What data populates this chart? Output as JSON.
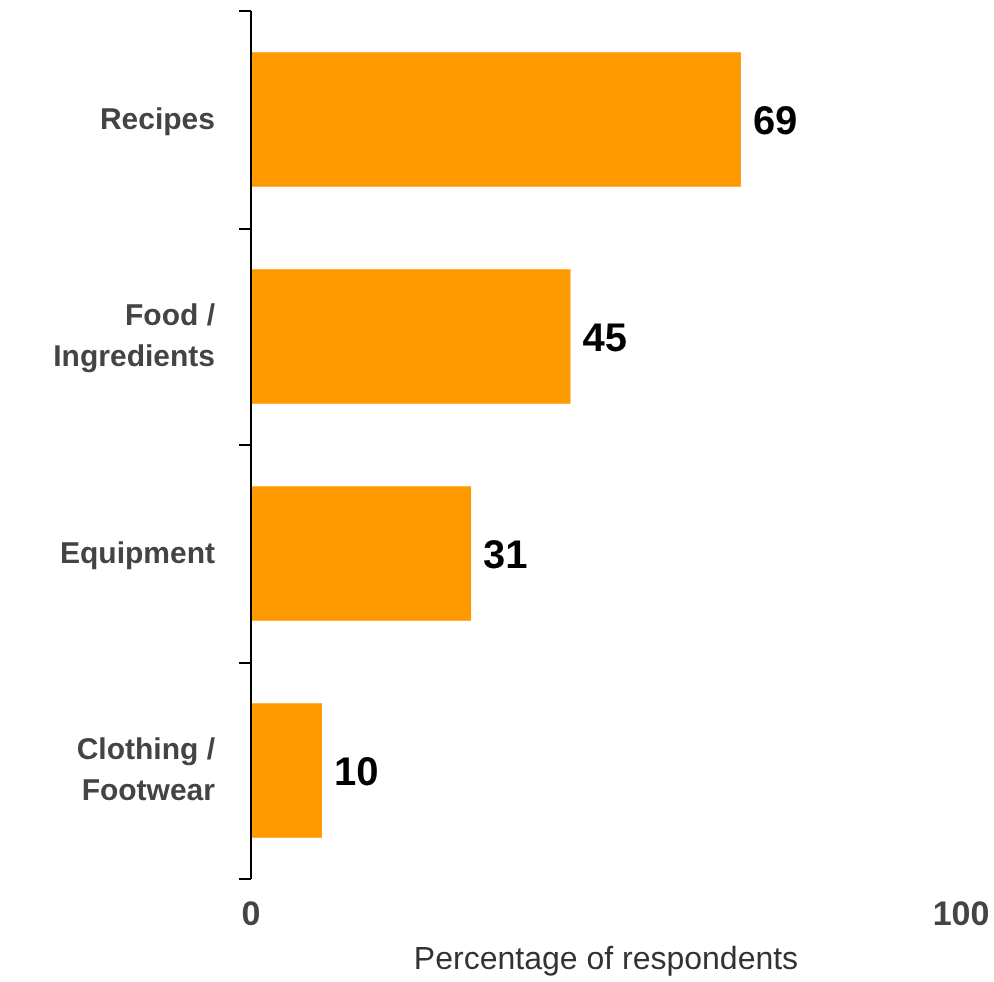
{
  "chart_data": {
    "type": "bar",
    "orientation": "horizontal",
    "xlabel": "Percentage of respondents",
    "categories": [
      "Recipes",
      "Food /\nIngredients",
      "Equipment",
      "Clothing /\nFootwear"
    ],
    "values": [
      69,
      45,
      31,
      10
    ],
    "color": "#ff9900",
    "xlim": [
      0,
      100
    ],
    "xticks": [
      0,
      100
    ],
    "data_labels": true,
    "grid": false
  }
}
